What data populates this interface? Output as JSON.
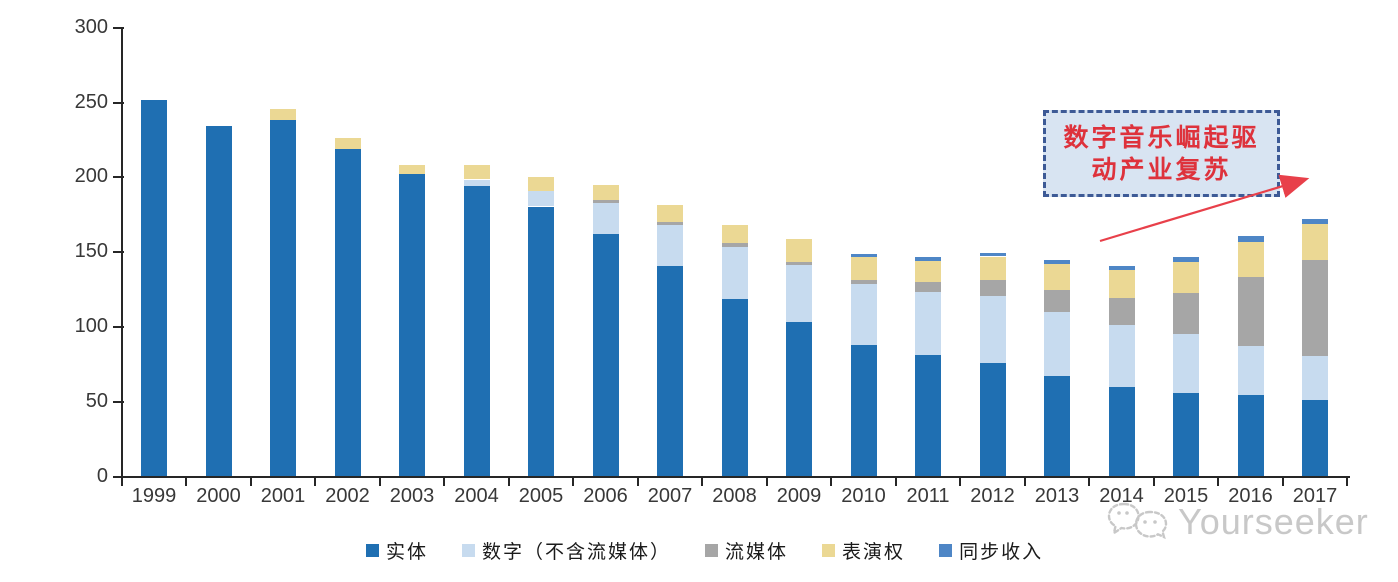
{
  "chart_data": {
    "type": "bar",
    "stacked": true,
    "title": "",
    "xlabel": "",
    "ylabel": "",
    "ylim": [
      0,
      300
    ],
    "y_ticks": [
      "0",
      "50",
      "100",
      "150",
      "200",
      "250",
      "300"
    ],
    "grid": false,
    "legend_position": "bottom",
    "categories": [
      "1999",
      "2000",
      "2001",
      "2002",
      "2003",
      "2004",
      "2005",
      "2006",
      "2007",
      "2008",
      "2009",
      "2010",
      "2011",
      "2012",
      "2013",
      "2014",
      "2015",
      "2016",
      "2017"
    ],
    "series": [
      {
        "key": "physical",
        "name": "实体",
        "color": "#1F6FB2",
        "values": [
          252,
          234,
          238.5,
          219,
          202,
          194,
          180.5,
          162,
          141,
          118.5,
          103.5,
          88,
          81,
          76,
          67,
          60,
          56,
          54.5,
          51
        ]
      },
      {
        "key": "digital",
        "name": "数字（不含流媒体）",
        "color": "#C7DBEF",
        "values": [
          0,
          0,
          0,
          0,
          0,
          4.5,
          10.5,
          21,
          27,
          35,
          38,
          40.5,
          42.5,
          44.5,
          43,
          41,
          39.5,
          33,
          29.5
        ]
      },
      {
        "key": "streaming",
        "name": "流媒体",
        "color": "#A6A6A6",
        "values": [
          0,
          0,
          0,
          0,
          0,
          0,
          0,
          2,
          2,
          2.5,
          2,
          3,
          6.5,
          11,
          14.5,
          18.5,
          27,
          46,
          64
        ]
      },
      {
        "key": "performance",
        "name": "表演权",
        "color": "#EBD894",
        "values": [
          0,
          0,
          7.5,
          7.5,
          6.5,
          9.5,
          9.5,
          10,
          11.5,
          12,
          15,
          15,
          14,
          15.5,
          17.5,
          18.5,
          21,
          23.5,
          24.5
        ]
      },
      {
        "key": "sync",
        "name": "同步收入",
        "color": "#4E86C6",
        "values": [
          0,
          0,
          0,
          0,
          0,
          0,
          0,
          0,
          0,
          0,
          0,
          2.5,
          2.5,
          2.5,
          2.5,
          3,
          3.5,
          3.5,
          3
        ]
      }
    ]
  },
  "annotation": {
    "line1": "数字音乐崛起驱",
    "line2": "动产业复苏",
    "text_color": "#DE323C",
    "fill_color": "#D8E4F2",
    "border_color": "#3D5A96",
    "arrow_color": "#E8404A"
  },
  "watermark": {
    "text": "Yourseeker",
    "color": "#C8C8C8"
  }
}
